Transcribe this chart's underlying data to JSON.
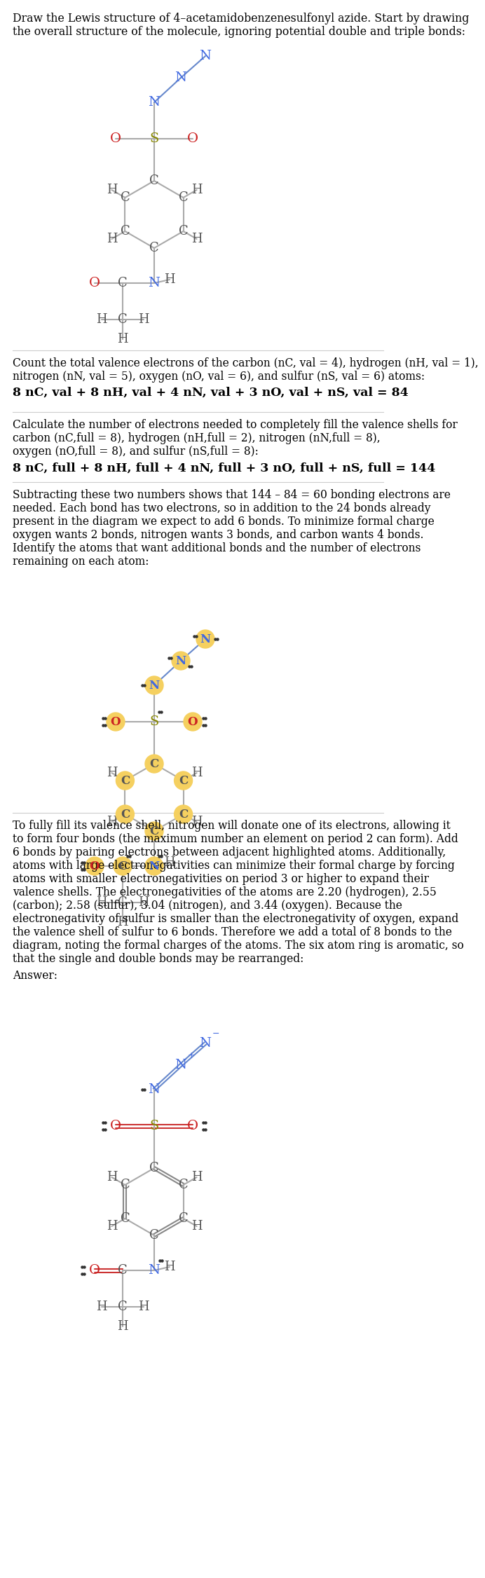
{
  "N_color": "#4169e1",
  "O_color": "#cc2222",
  "S_color": "#888800",
  "C_color": "#555555",
  "H_color": "#555555",
  "lc": "#aaaaaa",
  "highlight_color": "#f5d060",
  "minus_sign": "−",
  "endash": "–",
  "section1_lines": [
    "Draw the Lewis structure of 4–acetamidobenzenesulfonyl azide. Start by drawing",
    "the overall structure of the molecule, ignoring potential double and triple bonds:"
  ],
  "section2_lines": [
    "Count the total valence electrons of the carbon (nC, val = 4), hydrogen (nH, val = 1),",
    "nitrogen (nN, val = 5), oxygen (nO, val = 6), and sulfur (nS, val = 6) atoms:"
  ],
  "section2_formula": "8 nC, val + 8 nH, val + 4 nN, val + 3 nO, val + nS, val = 84",
  "section3_lines": [
    "Calculate the number of electrons needed to completely fill the valence shells for",
    "carbon (nC,full = 8), hydrogen (nH,full = 2), nitrogen (nN,full = 8),",
    "oxygen (nO,full = 8), and sulfur (nS,full = 8):"
  ],
  "section3_formula": "8 nC, full + 8 nH, full + 4 nN, full + 3 nO, full + nS, full = 144",
  "section4_lines": [
    "Subtracting these two numbers shows that 144 – 84 = 60 bonding electrons are",
    "needed. Each bond has two electrons, so in addition to the 24 bonds already",
    "present in the diagram we expect to add 6 bonds. To minimize formal charge",
    "oxygen wants 2 bonds, nitrogen wants 3 bonds, and carbon wants 4 bonds.",
    "Identify the atoms that want additional bonds and the number of electrons",
    "remaining on each atom:"
  ],
  "section5_lines": [
    "To fully fill its valence shell, nitrogen will donate one of its electrons, allowing it",
    "to form four bonds (the maximum number an element on period 2 can form). Add",
    "6 bonds by pairing electrons between adjacent highlighted atoms. Additionally,",
    "atoms with large electronegativities can minimize their formal charge by forcing",
    "atoms with smaller electronegativities on period 3 or higher to expand their",
    "valence shells. The electronegativities of the atoms are 2.20 (hydrogen), 2.55",
    "(carbon); 2.58 (sulfur), 3.04 (nitrogen), and 3.44 (oxygen). Because the",
    "electronegativity of sulfur is smaller than the electronegativity of oxygen, expand",
    "the valence shell of sulfur to 6 bonds. Therefore we add a total of 8 bonds to the",
    "diagram, noting the formal charges of the atoms. The six atom ring is aromatic, so",
    "that the single and double bonds may be rearranged:"
  ],
  "answer_label": "Answer:"
}
